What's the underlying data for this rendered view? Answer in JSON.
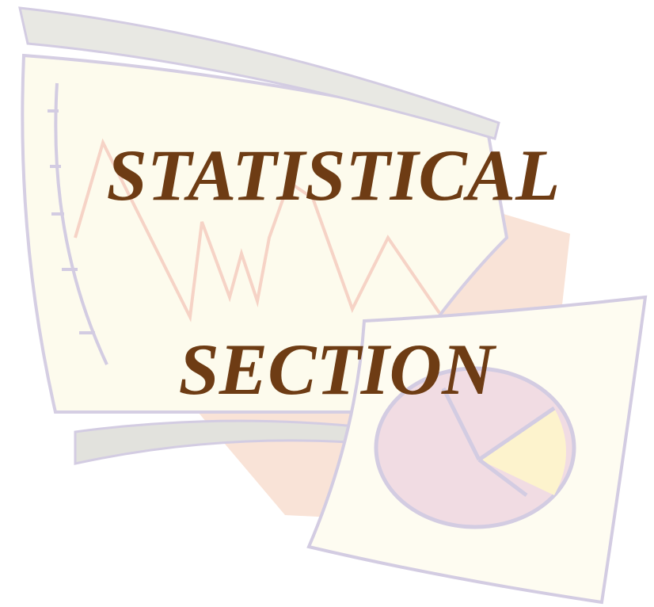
{
  "title": {
    "line1": "STATISTICAL",
    "line2": "SECTION"
  }
}
